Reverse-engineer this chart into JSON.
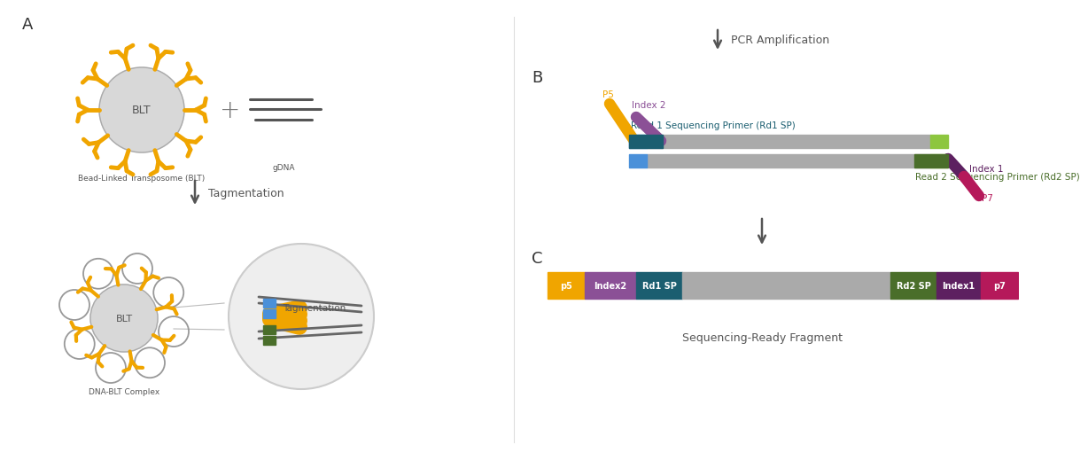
{
  "bg_color": "#ffffff",
  "text_color": "#555555",
  "arrow_color": "#555555",
  "label_A": "A",
  "label_B": "B",
  "label_C": "C",
  "blt_label": "BLT",
  "blt_caption": "Bead-Linked Transposome (BLT)",
  "gdna_caption": "gDNA",
  "tagmentation_label": "Tagmentation",
  "dna_blt_caption": "DNA-BLT Complex",
  "tagmentation_caption": "Tagmentation",
  "pcr_label": "PCR Amplification",
  "seq_ready_label": "Sequencing-Ready Fragment",
  "p5_label": "P5",
  "p7_label": "P7",
  "index1_label": "Index 1",
  "index2_label": "Index 2",
  "rd1sp_label": "Read 1 Sequencing Primer (Rd1 SP)",
  "rd2sp_label": "Read 2 Sequencing Primer (Rd2 SP)",
  "frag_p5": "p5",
  "frag_index2": "Index2",
  "frag_rd1sp": "Rd1 SP",
  "frag_rd2sp": "Rd2 SP",
  "frag_index1": "Index1",
  "frag_p7": "p7",
  "color_orange": "#F0A500",
  "color_purple": "#8B5096",
  "color_teal": "#1B5E70",
  "color_blue": "#4A90D9",
  "color_green_light": "#8DC63F",
  "color_green_dark": "#4A6E2A",
  "color_pink": "#B5195A",
  "color_gray_strand": "#888888",
  "color_bead": "#D8D8D8",
  "color_transposome": "#F0A500",
  "color_loop": "#999999",
  "color_zoom_bg": "#EEEEEE",
  "color_zoom_border": "#CCCCCC"
}
